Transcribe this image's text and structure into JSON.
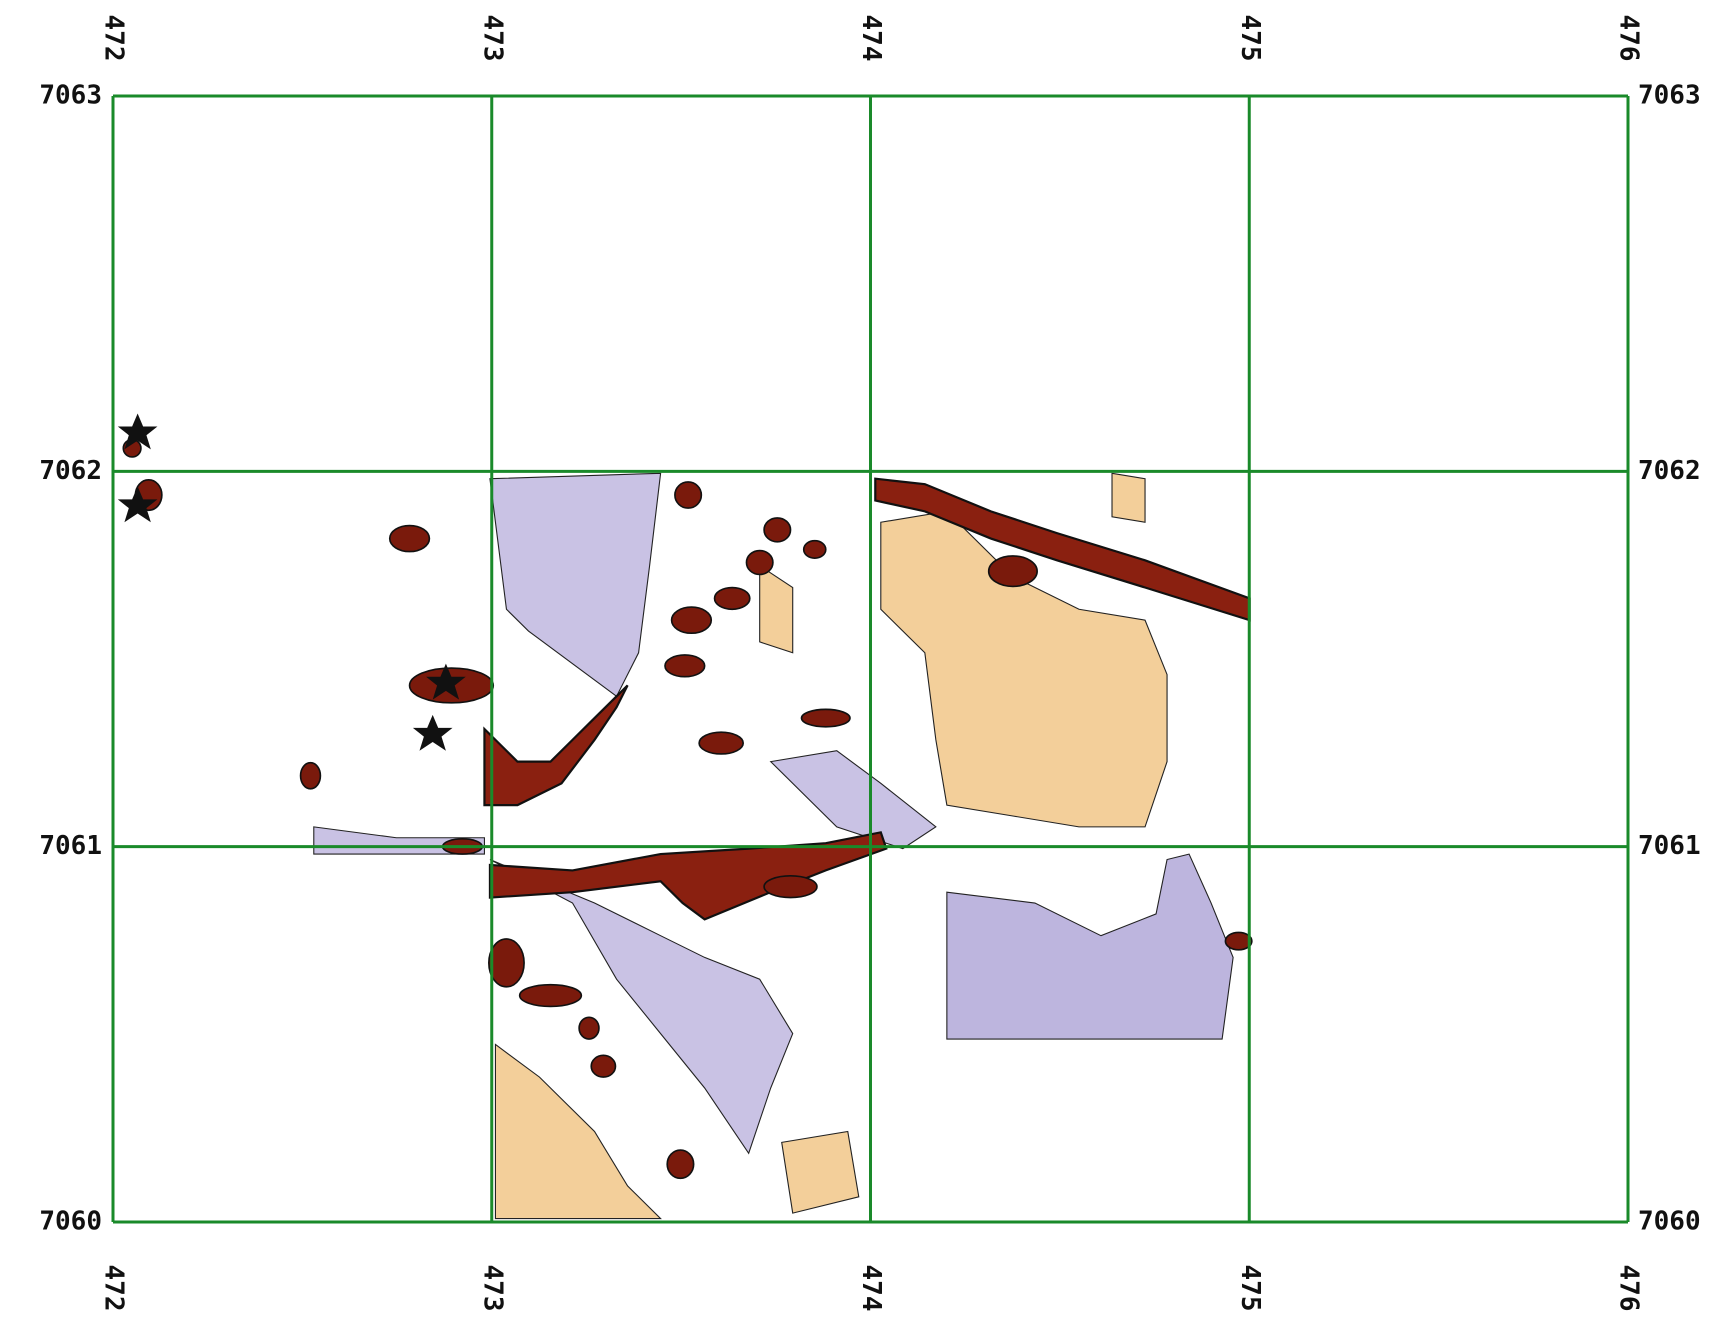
{
  "map": {
    "xlim": [
      472,
      476
    ],
    "ylim": [
      7060,
      7063
    ],
    "xticks": [
      472,
      473,
      474,
      475,
      476
    ],
    "yticks": [
      7060,
      7061,
      7062,
      7063
    ],
    "grid": true,
    "grid_color": "#1a8a2a"
  }
}
